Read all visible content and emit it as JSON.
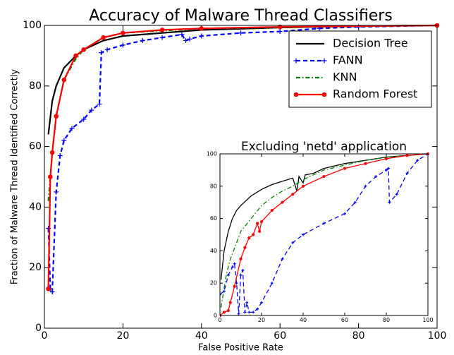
{
  "chart_data": [
    {
      "type": "line",
      "title": "Accuracy of Malware Thread Classifiers",
      "xlabel": "False Positive Rate",
      "ylabel": "Fraction of Malware Thread Identified Correctly",
      "xlim": [
        0,
        100
      ],
      "ylim": [
        0,
        100
      ],
      "xticks": [
        0,
        20,
        40,
        60,
        80,
        100
      ],
      "yticks": [
        0,
        20,
        40,
        60,
        80,
        100
      ],
      "grid": false,
      "legend": "upper right",
      "series": [
        {
          "name": "Decision Tree",
          "color": "#000000",
          "linestyle": "solid",
          "marker": "none",
          "x": [
            1,
            2,
            3,
            5,
            8,
            10,
            15,
            20,
            30,
            40,
            60,
            80,
            100
          ],
          "values": [
            64,
            75,
            80,
            86,
            90,
            92,
            95,
            96.5,
            97.5,
            98.5,
            99.3,
            99.8,
            100
          ]
        },
        {
          "name": "FANN",
          "color": "#0000ff",
          "linestyle": "dashed",
          "marker": "plus",
          "x": [
            1,
            1.5,
            2,
            3,
            4,
            5,
            7,
            10,
            12,
            14,
            14.5,
            16,
            20,
            25,
            30,
            35,
            36,
            37,
            40,
            50,
            60,
            70,
            80,
            100
          ],
          "values": [
            33,
            13,
            12,
            45,
            57,
            62,
            66,
            69,
            72,
            74,
            91,
            92,
            93.5,
            95,
            96,
            97,
            95,
            95.5,
            96.5,
            97.5,
            98,
            99,
            99.5,
            100
          ]
        },
        {
          "name": "KNN",
          "color": "#008000",
          "linestyle": "dashdot",
          "marker": "none",
          "x": [
            1,
            2,
            3,
            5,
            8,
            10,
            15,
            20,
            40,
            100
          ],
          "values": [
            42,
            58,
            70,
            82,
            89,
            92,
            96,
            97.5,
            99,
            100
          ]
        },
        {
          "name": "Random Forest",
          "color": "#ff0000",
          "linestyle": "solid",
          "marker": "dot",
          "x": [
            1,
            1.5,
            2,
            3,
            5,
            8,
            10,
            15,
            20,
            30,
            40,
            60,
            100
          ],
          "values": [
            13,
            50,
            58,
            70,
            82,
            90,
            92,
            96,
            97.5,
            98.5,
            99,
            99.5,
            100
          ]
        }
      ]
    },
    {
      "type": "line",
      "title": "Excluding 'netd' application",
      "xlim": [
        0,
        100
      ],
      "ylim": [
        0,
        100
      ],
      "xticks": [
        0,
        20,
        40,
        60,
        80,
        100
      ],
      "yticks": [
        0,
        20,
        40,
        60,
        80,
        100
      ],
      "grid": false,
      "series": [
        {
          "color": "#000000",
          "linestyle": "solid",
          "marker": "none",
          "x": [
            0.5,
            2,
            4,
            6,
            8,
            10,
            15,
            20,
            25,
            30,
            35,
            37,
            38,
            40,
            41,
            45,
            50,
            60,
            70,
            80,
            90,
            100
          ],
          "values": [
            22,
            40,
            52,
            60,
            65,
            68,
            74,
            78,
            81,
            83,
            85,
            77,
            86,
            82,
            87,
            88,
            91,
            94,
            96,
            98,
            99,
            100
          ]
        },
        {
          "color": "#0000ff",
          "linestyle": "dashed",
          "marker": "plus",
          "x": [
            0,
            2,
            4,
            6,
            7,
            8,
            9,
            10,
            11,
            12,
            13,
            14,
            16,
            18,
            20,
            25,
            30,
            35,
            40,
            50,
            60,
            65,
            70,
            75,
            80,
            81,
            81.5,
            85,
            90,
            95,
            100
          ],
          "values": [
            13,
            15,
            25,
            30,
            32,
            20,
            1,
            25,
            28,
            2,
            8,
            2,
            2,
            4,
            8,
            20,
            35,
            45,
            50,
            57,
            63,
            70,
            80,
            86,
            90,
            91,
            70,
            75,
            88,
            96,
            100
          ]
        },
        {
          "color": "#008000",
          "linestyle": "dashdot",
          "marker": "none",
          "x": [
            0.5,
            3,
            5,
            8,
            10,
            15,
            20,
            25,
            30,
            35,
            40,
            50,
            60,
            70,
            80,
            100
          ],
          "values": [
            5,
            25,
            35,
            45,
            52,
            60,
            68,
            73,
            77,
            80,
            84,
            90,
            93,
            96,
            98,
            100
          ]
        },
        {
          "color": "#ff0000",
          "linestyle": "solid",
          "marker": "dot",
          "x": [
            0,
            2,
            4,
            5,
            7,
            10,
            12,
            14,
            16,
            18,
            19,
            20,
            25,
            30,
            35,
            40,
            50,
            60,
            70,
            80,
            90,
            100
          ],
          "values": [
            0,
            2,
            3,
            8,
            18,
            35,
            42,
            48,
            50,
            57,
            52,
            58,
            65,
            70,
            75,
            80,
            86,
            91,
            94,
            97,
            99,
            100
          ]
        }
      ]
    }
  ]
}
